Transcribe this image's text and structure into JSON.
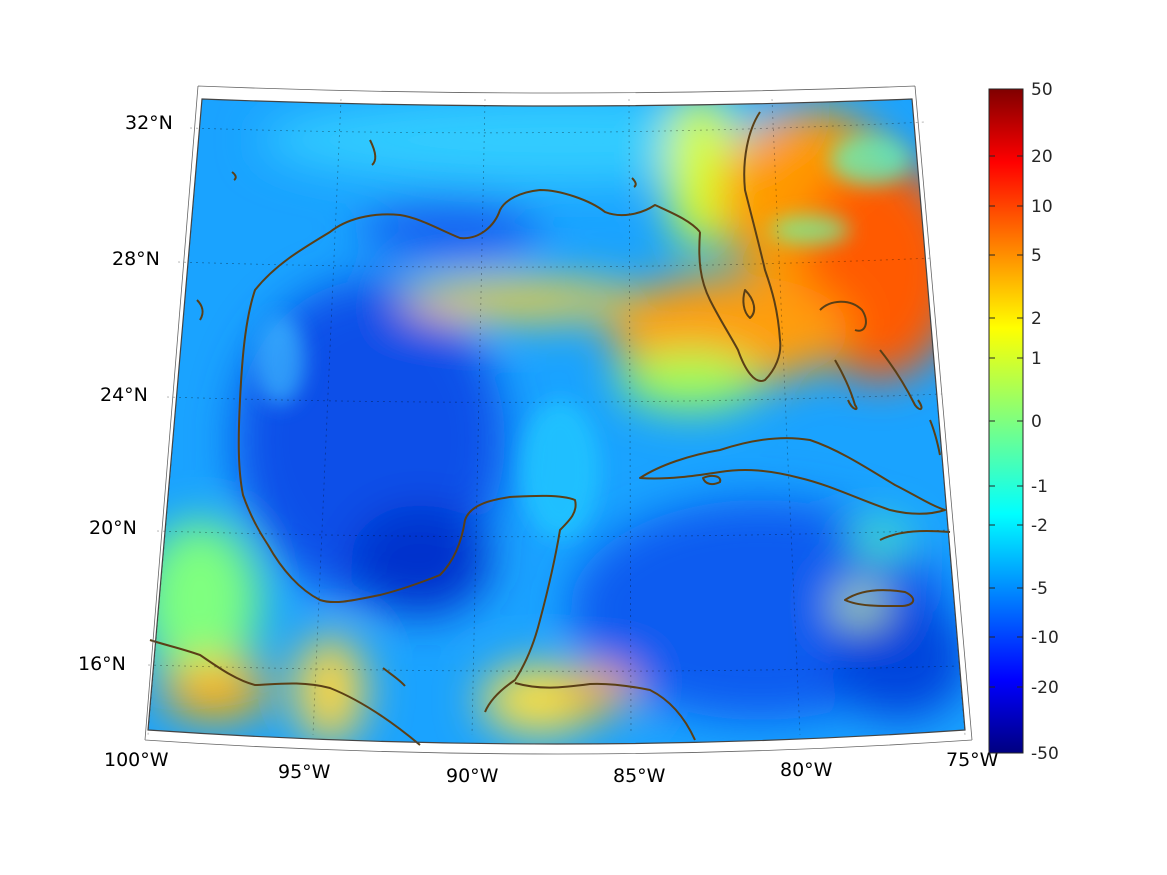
{
  "map": {
    "projection": "conic",
    "region": "Gulf of Mexico and Caribbean",
    "lon_range": [
      -100,
      -75
    ],
    "lat_range": [
      14,
      33
    ],
    "field": "diverging anomaly field",
    "colormap": "jet",
    "coastline_color": "#5a3f16",
    "lon_ticks": [
      {
        "value": -100,
        "label": "100°W"
      },
      {
        "value": -95,
        "label": "95°W"
      },
      {
        "value": -90,
        "label": "90°W"
      },
      {
        "value": -85,
        "label": "85°W"
      },
      {
        "value": -80,
        "label": "80°W"
      },
      {
        "value": -75,
        "label": "75°W"
      }
    ],
    "lat_ticks": [
      {
        "value": 32,
        "label": "32°N"
      },
      {
        "value": 28,
        "label": "28°N"
      },
      {
        "value": 24,
        "label": "24°N"
      },
      {
        "value": 20,
        "label": "20°N"
      },
      {
        "value": 16,
        "label": "16°N"
      }
    ],
    "grid": true
  },
  "colorbar": {
    "scale": "symmetric nonlinear",
    "range": [
      -50,
      50
    ],
    "ticks": [
      "50",
      "20",
      "10",
      "5",
      "2",
      "1",
      "0",
      "-1",
      "-2",
      "-5",
      "-10",
      "-20",
      "-50"
    ]
  }
}
